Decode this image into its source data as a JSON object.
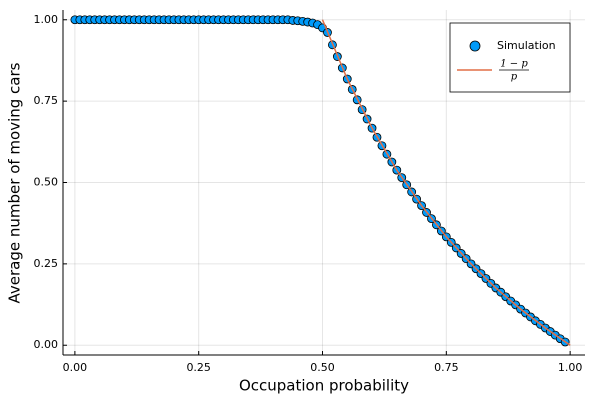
{
  "chart_data": {
    "type": "scatter",
    "x_label": "Occupation probability",
    "y_label": "Average number of moving cars",
    "xlim": [
      -0.024,
      1.03
    ],
    "ylim": [
      -0.03,
      1.03
    ],
    "xticks": [
      {
        "value": 0,
        "label": "0.00"
      },
      {
        "value": 0.25,
        "label": "0.25"
      },
      {
        "value": 0.5,
        "label": "0.50"
      },
      {
        "value": 0.75,
        "label": "0.75"
      },
      {
        "value": 1,
        "label": "1.00"
      }
    ],
    "yticks": [
      {
        "value": 0,
        "label": "0.00"
      },
      {
        "value": 0.25,
        "label": "0.25"
      },
      {
        "value": 0.5,
        "label": "0.50"
      },
      {
        "value": 0.75,
        "label": "0.75"
      },
      {
        "value": 1,
        "label": "1.00"
      }
    ],
    "grid": true,
    "legend": "top-right",
    "series": [
      {
        "name": "Simulation",
        "kind": "scatter",
        "color": "#009af9",
        "x": [
          0,
          0.01,
          0.02,
          0.03,
          0.04,
          0.05,
          0.06,
          0.07,
          0.08,
          0.09,
          0.1,
          0.11,
          0.12,
          0.13,
          0.14,
          0.15,
          0.16,
          0.17,
          0.18,
          0.19,
          0.2,
          0.21,
          0.22,
          0.23,
          0.24,
          0.25,
          0.26,
          0.27,
          0.28,
          0.29,
          0.3,
          0.31,
          0.32,
          0.33,
          0.34,
          0.35,
          0.36,
          0.37,
          0.38,
          0.39,
          0.4,
          0.41,
          0.42,
          0.43,
          0.44,
          0.45,
          0.46,
          0.47,
          0.48,
          0.49,
          0.5,
          0.51,
          0.52,
          0.53,
          0.54,
          0.55,
          0.56,
          0.57,
          0.58,
          0.59,
          0.6,
          0.61,
          0.62,
          0.63,
          0.64,
          0.65,
          0.66,
          0.67,
          0.68,
          0.69,
          0.7,
          0.71,
          0.72,
          0.73,
          0.74,
          0.75,
          0.76,
          0.77,
          0.78,
          0.79,
          0.8,
          0.81,
          0.82,
          0.83,
          0.84,
          0.85,
          0.86,
          0.87,
          0.88,
          0.89,
          0.9,
          0.91,
          0.92,
          0.93,
          0.94,
          0.95,
          0.96,
          0.97,
          0.98,
          0.99
        ],
        "values": [
          1,
          1,
          1,
          1,
          1,
          1,
          1,
          1,
          1,
          1,
          1,
          1,
          1,
          1,
          1,
          1,
          1,
          1,
          1,
          1,
          1,
          1,
          1,
          1,
          1,
          1,
          1,
          1,
          1,
          1,
          1,
          1,
          1,
          1,
          1,
          1,
          1,
          1,
          1,
          1,
          1,
          1,
          1,
          1,
          0.998,
          0.997,
          0.995,
          0.993,
          0.99,
          0.985,
          0.975,
          0.961,
          0.923,
          0.887,
          0.852,
          0.818,
          0.786,
          0.754,
          0.724,
          0.695,
          0.667,
          0.639,
          0.613,
          0.587,
          0.563,
          0.538,
          0.515,
          0.493,
          0.471,
          0.449,
          0.429,
          0.408,
          0.389,
          0.37,
          0.351,
          0.333,
          0.316,
          0.299,
          0.282,
          0.266,
          0.25,
          0.235,
          0.22,
          0.205,
          0.19,
          0.176,
          0.163,
          0.149,
          0.136,
          0.124,
          0.111,
          0.099,
          0.087,
          0.075,
          0.064,
          0.053,
          0.042,
          0.031,
          0.02,
          0.01
        ]
      },
      {
        "name": {
          "numerator": "1 − p",
          "denominator": "p"
        },
        "kind": "line",
        "color": "#e26f46",
        "x": [
          0.5,
          0.55,
          0.6,
          0.65,
          0.7,
          0.75,
          0.8,
          0.85,
          0.9,
          0.95,
          1
        ],
        "values": [
          1,
          0.818,
          0.667,
          0.538,
          0.429,
          0.333,
          0.25,
          0.176,
          0.111,
          0.053,
          0
        ]
      }
    ]
  }
}
